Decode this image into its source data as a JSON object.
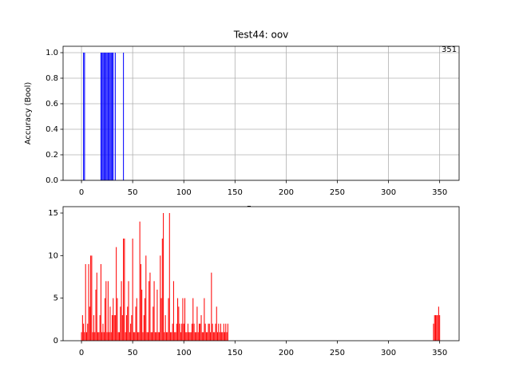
{
  "chart_data": [
    {
      "type": "bar",
      "title": "Test44: oov",
      "ylabel": "Accuracy (Bool)",
      "xlabel": "Frames",
      "annotation": "351",
      "x": [
        2,
        3,
        19,
        20,
        21,
        22,
        23,
        24,
        25,
        26,
        27,
        28,
        29,
        30,
        31,
        33,
        41
      ],
      "values": [
        1,
        1,
        1,
        1,
        1,
        1,
        1,
        1,
        1,
        1,
        1,
        1,
        1,
        1,
        1,
        1,
        1
      ],
      "color": "#0000ff",
      "xlim": [
        -18,
        369
      ],
      "ylim": [
        0,
        1.05
      ],
      "xticks": [
        0,
        50,
        100,
        150,
        200,
        250,
        300,
        350
      ],
      "yticks": [
        {
          "value": 0,
          "label": "0.0"
        },
        0.2,
        0.4,
        0.6,
        0.8,
        {
          "value": 1,
          "label": "1.0"
        }
      ],
      "grid": true
    },
    {
      "type": "bar",
      "x": [
        0,
        1,
        2,
        3,
        4,
        5,
        6,
        7,
        8,
        9,
        10,
        11,
        12,
        13,
        14,
        15,
        16,
        17,
        18,
        19,
        20,
        21,
        22,
        23,
        24,
        25,
        26,
        27,
        28,
        29,
        30,
        31,
        32,
        33,
        34,
        35,
        36,
        37,
        38,
        39,
        40,
        41,
        42,
        43,
        44,
        45,
        46,
        47,
        48,
        49,
        50,
        51,
        52,
        53,
        54,
        55,
        56,
        57,
        58,
        59,
        60,
        61,
        62,
        63,
        64,
        65,
        66,
        67,
        68,
        69,
        70,
        71,
        72,
        73,
        74,
        75,
        76,
        77,
        78,
        79,
        80,
        81,
        82,
        83,
        84,
        85,
        86,
        87,
        88,
        89,
        90,
        91,
        92,
        93,
        94,
        95,
        96,
        97,
        98,
        99,
        100,
        101,
        102,
        103,
        104,
        105,
        106,
        107,
        108,
        109,
        110,
        111,
        112,
        113,
        114,
        115,
        116,
        117,
        118,
        119,
        120,
        121,
        122,
        123,
        124,
        125,
        126,
        127,
        128,
        129,
        130,
        131,
        132,
        133,
        134,
        135,
        136,
        137,
        138,
        139,
        140,
        141,
        142,
        143,
        344,
        345,
        346,
        347,
        348,
        349,
        350
      ],
      "values": [
        1,
        3,
        2,
        1,
        9,
        1,
        2,
        9,
        4,
        10,
        10,
        1,
        3,
        1,
        6,
        8,
        1,
        1,
        3,
        9,
        1,
        2,
        1,
        5,
        7,
        1,
        7,
        1,
        4,
        1,
        3,
        5,
        3,
        3,
        11,
        5,
        1,
        1,
        4,
        7,
        3,
        12,
        12,
        1,
        3,
        4,
        7,
        1,
        2,
        3,
        12,
        1,
        1,
        4,
        5,
        1,
        1,
        14,
        9,
        6,
        1,
        3,
        5,
        10,
        1,
        1,
        7,
        8,
        1,
        1,
        4,
        7,
        1,
        1,
        6,
        1,
        1,
        10,
        5,
        12,
        15,
        1,
        3,
        1,
        1,
        5,
        15,
        1,
        1,
        2,
        7,
        1,
        1,
        2,
        5,
        4,
        2,
        1,
        2,
        5,
        2,
        5,
        1,
        1,
        2,
        1,
        1,
        1,
        2,
        5,
        2,
        1,
        1,
        4,
        1,
        2,
        2,
        3,
        1,
        1,
        5,
        2,
        1,
        1,
        2,
        2,
        1,
        8,
        2,
        1,
        1,
        2,
        4,
        1,
        2,
        1,
        2,
        1,
        1,
        2,
        1,
        2,
        1,
        2,
        2,
        3,
        3,
        3,
        3,
        4,
        3
      ],
      "color": "#ff0000",
      "xlim": [
        -18,
        369
      ],
      "ylim": [
        0,
        15.75
      ],
      "xticks": [
        0,
        50,
        100,
        150,
        200,
        250,
        300,
        350
      ],
      "yticks": [
        0,
        5,
        10,
        15
      ],
      "grid": false
    }
  ]
}
